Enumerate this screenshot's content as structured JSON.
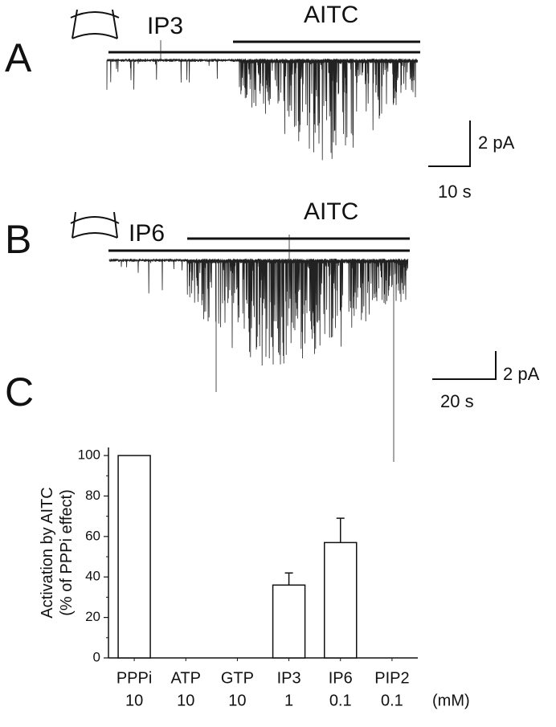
{
  "panel_a": {
    "label": "A",
    "stimuli": [
      "IP3",
      "AITC"
    ],
    "scale_y": "2 pA",
    "scale_x": "10 s"
  },
  "panel_b": {
    "label": "B",
    "stimuli": [
      "IP6",
      "AITC"
    ],
    "scale_y": "2 pA",
    "scale_x": "20 s"
  },
  "chart_data": {
    "type": "bar",
    "panel_label": "C",
    "ylabel": [
      "Activation by AITC",
      "(% of PPPi effect)"
    ],
    "categories": [
      "PPPi",
      "ATP",
      "GTP",
      "IP3",
      "IP6",
      "PIP2"
    ],
    "concentrations": [
      "10",
      "10",
      "10",
      "1",
      "0.1",
      "0.1"
    ],
    "concentration_unit": "(mM)",
    "values": [
      100,
      0,
      0,
      36,
      57,
      0
    ],
    "errors": [
      null,
      null,
      null,
      6,
      12,
      null
    ],
    "color": "#ffffff",
    "ylim": [
      0,
      104
    ],
    "yticks": [
      0,
      20,
      40,
      60,
      80,
      100
    ]
  }
}
